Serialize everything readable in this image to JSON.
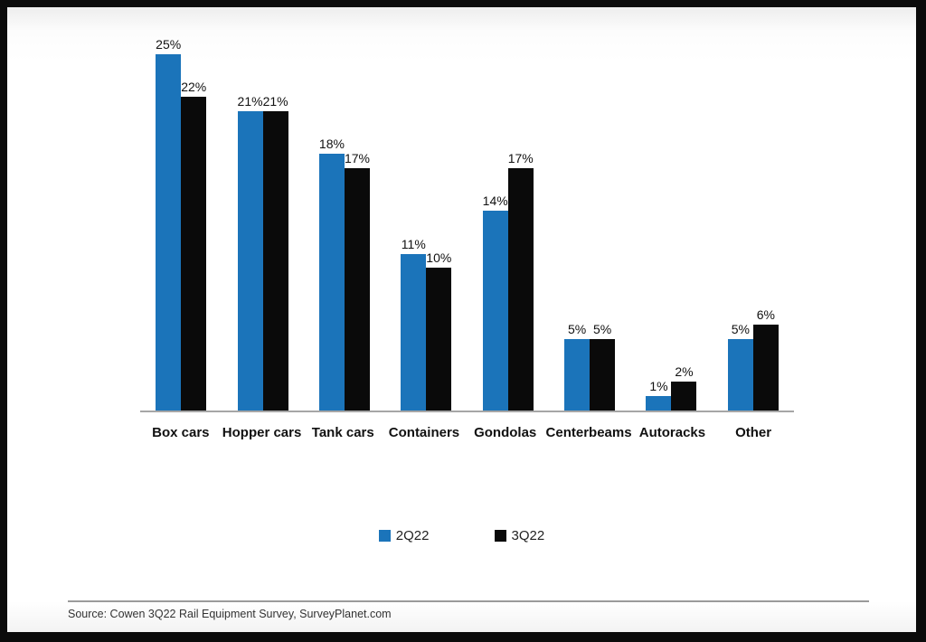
{
  "chart_data": {
    "type": "bar",
    "categories": [
      "Box cars",
      "Hopper cars",
      "Tank cars",
      "Containers",
      "Gondolas",
      "Centerbeams",
      "Autoracks",
      "Other"
    ],
    "series": [
      {
        "name": "2Q22",
        "color": "#1b74ba",
        "values": [
          25,
          21,
          18,
          11,
          14,
          5,
          1,
          5
        ]
      },
      {
        "name": "3Q22",
        "color": "#0a0a0a",
        "values": [
          22,
          21,
          17,
          10,
          17,
          5,
          2,
          6
        ]
      }
    ],
    "value_suffix": "%",
    "title": "",
    "xlabel": "",
    "ylabel": "",
    "ylim": [
      0,
      25
    ],
    "grid": false,
    "legend_position": "bottom",
    "axis_line_color": "#a6a6a6"
  },
  "footer": {
    "source": "Source: Cowen 3Q22 Rail Equipment Survey, SurveyPlanet.com"
  }
}
